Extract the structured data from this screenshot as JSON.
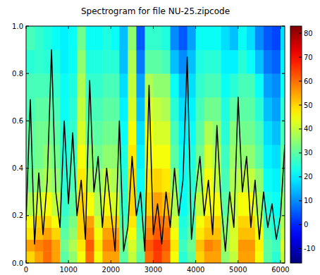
{
  "chart_data": {
    "type": "heatmap",
    "title": "Spectrogram for file NU-25.zipcode",
    "xlim": [
      0,
      6100
    ],
    "xticks": [
      0,
      1000,
      2000,
      3000,
      4000,
      5000,
      6000
    ],
    "ylim": [
      0,
      1
    ],
    "yticks": [
      {
        "value": 0,
        "label": "0.0"
      },
      {
        "value": 0.2,
        "label": "0.2"
      },
      {
        "value": 0.4,
        "label": "0.4"
      },
      {
        "value": 0.6,
        "label": "0.6"
      },
      {
        "value": 0.8,
        "label": "0.8"
      },
      {
        "value": 1,
        "label": "1.0"
      }
    ],
    "x_bins": [
      0,
      200,
      400,
      600,
      800,
      1000,
      1200,
      1400,
      1600,
      1800,
      2000,
      2200,
      2400,
      2600,
      2800,
      3000,
      3200,
      3400,
      3600,
      3800,
      4000,
      4200,
      4400,
      4600,
      4800,
      5000,
      5200,
      5400,
      5600,
      5800,
      6000,
      6100
    ],
    "y_bins": [
      0,
      0.05,
      0.1,
      0.15,
      0.2,
      0.3,
      0.4,
      0.5,
      0.6,
      0.7,
      0.8,
      0.9,
      1.0
    ],
    "cells": [
      [
        50,
        55,
        60,
        55,
        30,
        35,
        45,
        60,
        45,
        55,
        55,
        30,
        40,
        30,
        60,
        65,
        60,
        45,
        25,
        30,
        50,
        55,
        55,
        35,
        40,
        55,
        55,
        45,
        30,
        25,
        40
      ],
      [
        55,
        58,
        60,
        55,
        32,
        38,
        48,
        62,
        48,
        58,
        58,
        32,
        42,
        32,
        62,
        66,
        62,
        48,
        27,
        32,
        52,
        58,
        56,
        37,
        42,
        56,
        56,
        47,
        30,
        27,
        42
      ],
      [
        48,
        52,
        55,
        50,
        30,
        35,
        50,
        58,
        45,
        55,
        55,
        30,
        45,
        30,
        58,
        62,
        60,
        45,
        25,
        30,
        48,
        52,
        52,
        35,
        42,
        52,
        52,
        45,
        28,
        25,
        40
      ],
      [
        45,
        50,
        50,
        45,
        28,
        33,
        50,
        55,
        42,
        50,
        50,
        28,
        48,
        28,
        55,
        60,
        58,
        42,
        24,
        28,
        45,
        50,
        50,
        33,
        42,
        50,
        50,
        42,
        26,
        24,
        38
      ],
      [
        38,
        42,
        45,
        40,
        26,
        30,
        50,
        45,
        38,
        45,
        42,
        26,
        50,
        25,
        50,
        55,
        52,
        38,
        22,
        26,
        40,
        45,
        45,
        30,
        40,
        45,
        45,
        38,
        24,
        22,
        35
      ],
      [
        32,
        35,
        38,
        35,
        25,
        28,
        48,
        38,
        35,
        40,
        38,
        25,
        50,
        22,
        48,
        50,
        48,
        35,
        22,
        25,
        35,
        45,
        40,
        28,
        38,
        40,
        40,
        35,
        22,
        20,
        32
      ],
      [
        30,
        32,
        35,
        32,
        24,
        27,
        45,
        35,
        32,
        35,
        35,
        24,
        48,
        20,
        45,
        45,
        45,
        30,
        22,
        24,
        32,
        42,
        38,
        27,
        36,
        35,
        35,
        30,
        20,
        18,
        30
      ],
      [
        30,
        32,
        32,
        30,
        24,
        26,
        42,
        30,
        30,
        32,
        32,
        22,
        45,
        18,
        45,
        42,
        42,
        28,
        20,
        22,
        30,
        38,
        35,
        25,
        34,
        32,
        32,
        28,
        18,
        15,
        28
      ],
      [
        28,
        30,
        30,
        28,
        22,
        25,
        40,
        28,
        28,
        30,
        30,
        20,
        42,
        15,
        42,
        40,
        38,
        25,
        18,
        20,
        28,
        32,
        32,
        24,
        30,
        30,
        30,
        25,
        15,
        12,
        25
      ],
      [
        28,
        28,
        28,
        26,
        22,
        24,
        38,
        26,
        26,
        28,
        28,
        18,
        40,
        12,
        38,
        35,
        35,
        22,
        15,
        18,
        26,
        28,
        28,
        22,
        25,
        28,
        28,
        22,
        12,
        10,
        22
      ],
      [
        25,
        26,
        25,
        24,
        20,
        22,
        35,
        24,
        24,
        25,
        25,
        15,
        38,
        8,
        30,
        30,
        28,
        15,
        10,
        15,
        24,
        25,
        25,
        20,
        20,
        25,
        22,
        15,
        8,
        6,
        20
      ],
      [
        28,
        26,
        24,
        22,
        20,
        22,
        32,
        22,
        22,
        24,
        22,
        15,
        35,
        5,
        26,
        26,
        24,
        10,
        5,
        12,
        22,
        22,
        22,
        18,
        15,
        22,
        18,
        10,
        5,
        3,
        18
      ]
    ],
    "color_range": [
      -16,
      83
    ],
    "color_ticks": [
      -10,
      0,
      10,
      20,
      30,
      40,
      50,
      60,
      70,
      80
    ],
    "series": [
      {
        "type": "line",
        "color": "#000000",
        "x": [
          0,
          100,
          200,
          300,
          400,
          500,
          600,
          700,
          800,
          900,
          1000,
          1100,
          1200,
          1300,
          1400,
          1500,
          1600,
          1700,
          1800,
          1900,
          2000,
          2100,
          2200,
          2300,
          2400,
          2500,
          2600,
          2700,
          2800,
          2900,
          3000,
          3100,
          3200,
          3300,
          3400,
          3500,
          3600,
          3700,
          3800,
          3900,
          4000,
          4100,
          4200,
          4300,
          4400,
          4500,
          4600,
          4700,
          4800,
          4900,
          5000,
          5100,
          5200,
          5300,
          5400,
          5500,
          5600,
          5700,
          5800,
          5900,
          6000,
          6100
        ],
        "values": [
          0.18,
          0.69,
          0.08,
          0.38,
          0.12,
          0.35,
          0.9,
          0.3,
          0.15,
          0.6,
          0.25,
          0.55,
          0.2,
          0.35,
          0.1,
          0.77,
          0.3,
          0.45,
          0.15,
          0.4,
          0.22,
          0.05,
          0.6,
          0.05,
          0.15,
          0.45,
          0.2,
          0.3,
          0.05,
          0.75,
          0.12,
          0.25,
          0.08,
          0.3,
          0.15,
          0.4,
          0.2,
          0.35,
          0.87,
          0.1,
          0.3,
          0.45,
          0.2,
          0.35,
          0.12,
          0.58,
          0.25,
          0.05,
          0.3,
          0.15,
          0.7,
          0.3,
          0.45,
          0.15,
          0.35,
          0.1,
          0.3,
          0.15,
          0.25,
          0.1,
          0.2,
          0.5
        ]
      }
    ]
  }
}
